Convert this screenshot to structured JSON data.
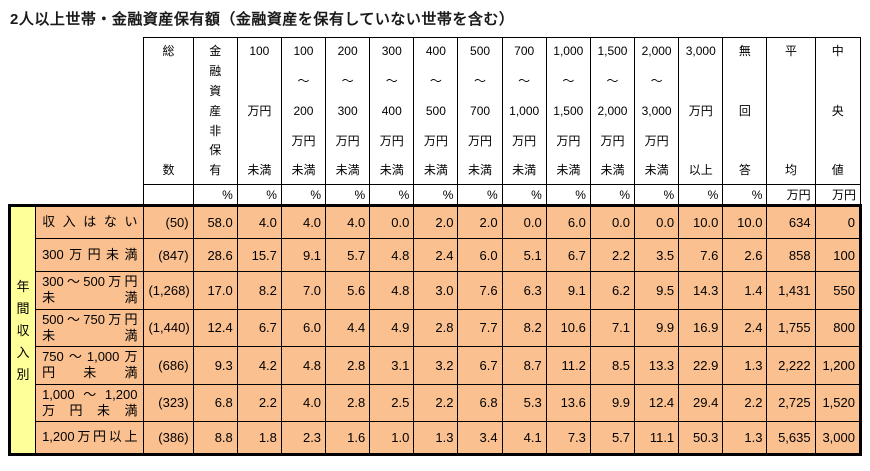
{
  "title": "2人以上世帯・金融資産保有額（金融資産を保有していない世帯を含む）",
  "colors": {
    "data_bg": "#FAC090",
    "axis_bg": "#FFFF99",
    "border": "#000000"
  },
  "table": {
    "axis_label": "年\n間\n収\n入\n別",
    "columns": [
      "総\n数",
      "金\n融\n資\n産\n非\n保\n有",
      "100\n万円\n未満",
      "100\n～\n200\n万円\n未満",
      "200\n～\n300\n万円\n未満",
      "300\n～\n400\n万円\n未満",
      "400\n～\n500\n万円\n未満",
      "500\n～\n700\n万円\n未満",
      "700\n～\n1,000\n万円\n未満",
      "1,000\n～\n1,500\n万円\n未満",
      "1,500\n～\n2,000\n万円\n未満",
      "2,000\n～\n3,000\n万円\n未満",
      "3,000\n万円\n以上",
      "無\n回\n答",
      "平\n均",
      "中\n央\n値"
    ],
    "units": [
      "",
      "%",
      "%",
      "%",
      "%",
      "%",
      "%",
      "%",
      "%",
      "%",
      "%",
      "%",
      "%",
      "%",
      "万円",
      "万円"
    ],
    "rows": [
      {
        "label": "収入はない",
        "values": [
          "(50)",
          "58.0",
          "4.0",
          "4.0",
          "4.0",
          "0.0",
          "2.0",
          "2.0",
          "0.0",
          "6.0",
          "0.0",
          "0.0",
          "10.0",
          "10.0",
          "634",
          "0"
        ]
      },
      {
        "label": "300万円未満",
        "values": [
          "(847)",
          "28.6",
          "15.7",
          "9.1",
          "5.7",
          "4.8",
          "2.4",
          "6.0",
          "5.1",
          "6.7",
          "2.2",
          "3.5",
          "7.6",
          "2.6",
          "858",
          "100"
        ]
      },
      {
        "label": "300～500万円\n未満",
        "values": [
          "(1,268)",
          "17.0",
          "8.2",
          "7.0",
          "5.6",
          "4.8",
          "3.0",
          "7.6",
          "6.3",
          "9.1",
          "6.2",
          "9.5",
          "14.3",
          "1.4",
          "1,431",
          "550"
        ]
      },
      {
        "label": "500～750万円\n未満",
        "values": [
          "(1,440)",
          "12.4",
          "6.7",
          "6.0",
          "4.4",
          "4.9",
          "2.8",
          "7.7",
          "8.2",
          "10.6",
          "7.1",
          "9.9",
          "16.9",
          "2.4",
          "1,755",
          "800"
        ]
      },
      {
        "label": "750～1,000万\n円未満",
        "values": [
          "(686)",
          "9.3",
          "4.2",
          "4.8",
          "2.8",
          "3.1",
          "3.2",
          "6.7",
          "8.7",
          "11.2",
          "8.5",
          "13.3",
          "22.9",
          "1.3",
          "2,222",
          "1,200"
        ]
      },
      {
        "label": "1,000～1,200\n万円未満",
        "values": [
          "(323)",
          "6.8",
          "2.2",
          "4.0",
          "2.8",
          "2.5",
          "2.2",
          "6.8",
          "5.3",
          "13.6",
          "9.9",
          "12.4",
          "29.4",
          "2.2",
          "2,725",
          "1,520"
        ]
      },
      {
        "label": "1,200万円以上",
        "values": [
          "(386)",
          "8.8",
          "1.8",
          "2.3",
          "1.6",
          "1.0",
          "1.3",
          "3.4",
          "4.1",
          "7.3",
          "5.7",
          "11.1",
          "50.3",
          "1.3",
          "5,635",
          "3,000"
        ]
      }
    ]
  }
}
